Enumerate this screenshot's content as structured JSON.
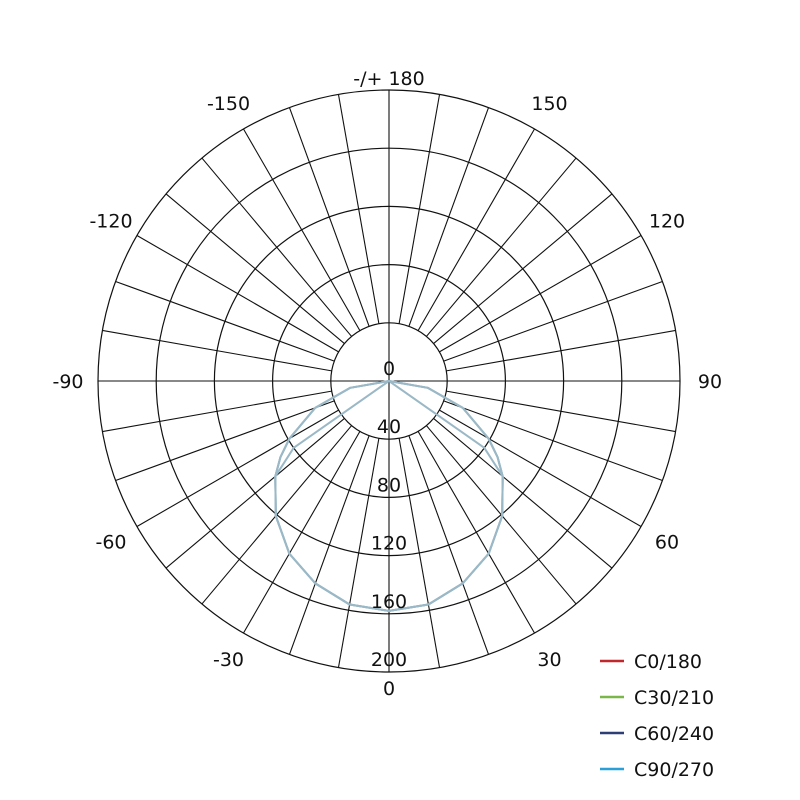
{
  "chart_data": {
    "type": "polar",
    "radial_ticks": [
      "0",
      "40",
      "80",
      "120",
      "160",
      "200"
    ],
    "radial_range": [
      0,
      200
    ],
    "angle_labels": [
      {
        "angle": 180,
        "text": "-/+ 180"
      },
      {
        "angle": 150,
        "text": "150"
      },
      {
        "angle": 120,
        "text": "120"
      },
      {
        "angle": 90,
        "text": "90"
      },
      {
        "angle": 60,
        "text": "60"
      },
      {
        "angle": 30,
        "text": "30"
      },
      {
        "angle": 0,
        "text": "0"
      },
      {
        "angle": -30,
        "text": "-30"
      },
      {
        "angle": -60,
        "text": "-60"
      },
      {
        "angle": -90,
        "text": "-90"
      },
      {
        "angle": -120,
        "text": "-120"
      },
      {
        "angle": -150,
        "text": "-150"
      }
    ],
    "grid": true,
    "legend_placement": "bottom-right",
    "angles": [
      -90,
      -80,
      -70,
      -60,
      -55,
      -50,
      -40,
      -30,
      -20,
      -10,
      0,
      10,
      20,
      30,
      40,
      50,
      55,
      60,
      70,
      80,
      90
    ],
    "series": [
      {
        "name": "C0/180",
        "color": "#c0282d",
        "values": [
          0,
          27,
          54,
          79,
          91,
          102,
          121,
          137,
          148,
          156,
          158,
          156,
          148,
          137,
          121,
          102,
          91,
          79,
          54,
          27,
          0
        ]
      },
      {
        "name": "C30/210",
        "color": "#7ab648",
        "values": [
          0,
          27,
          54,
          79,
          91,
          102,
          121,
          137,
          148,
          156,
          158,
          156,
          148,
          137,
          121,
          102,
          91,
          79,
          54,
          27,
          0
        ]
      },
      {
        "name": "C60/240",
        "color": "#2c3e73",
        "values": [
          0,
          0,
          0,
          0,
          80,
          102,
          121,
          137,
          148,
          156,
          158,
          156,
          148,
          137,
          121,
          102,
          80,
          0,
          0,
          0,
          0
        ]
      },
      {
        "name": "C90/270",
        "color": "#2a9fd8",
        "values": [
          0,
          27,
          54,
          79,
          91,
          102,
          121,
          137,
          148,
          156,
          158,
          156,
          148,
          137,
          121,
          102,
          91,
          79,
          54,
          27,
          0
        ]
      }
    ],
    "curve_render_color": "#9ab8c6"
  }
}
